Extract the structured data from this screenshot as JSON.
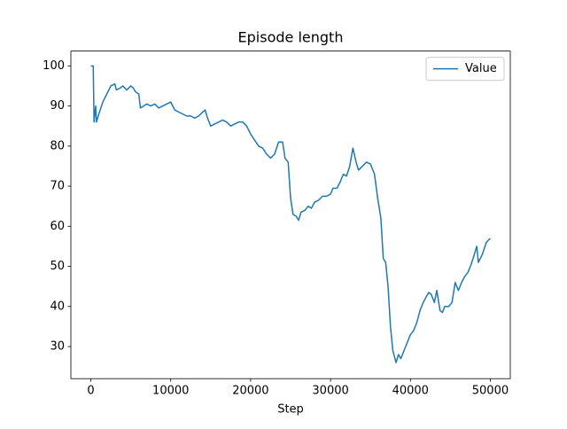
{
  "chart_data": {
    "type": "line",
    "title": "Episode length",
    "x_label": "Step",
    "x": [
      0,
      300,
      400,
      600,
      700,
      1000,
      1500,
      2000,
      2500,
      3000,
      3200,
      3700,
      4000,
      4500,
      5000,
      5300,
      5600,
      6000,
      6200,
      6600,
      7000,
      7500,
      8000,
      8500,
      9000,
      9500,
      10000,
      10500,
      11000,
      11500,
      12000,
      12500,
      13000,
      13500,
      14000,
      14300,
      14600,
      15000,
      15500,
      16000,
      16500,
      17000,
      17500,
      18000,
      18500,
      19000,
      19500,
      20000,
      20500,
      21000,
      21500,
      22000,
      22500,
      23000,
      23500,
      24000,
      24300,
      24700,
      25000,
      25300,
      25700,
      26000,
      26300,
      26800,
      27200,
      27600,
      28000,
      28500,
      29000,
      29500,
      30000,
      30300,
      30800,
      31200,
      31600,
      32000,
      32400,
      32800,
      33200,
      33500,
      34000,
      34500,
      35000,
      35500,
      35900,
      36300,
      36600,
      36900,
      37200,
      37500,
      37800,
      38200,
      38500,
      38800,
      39200,
      39600,
      40000,
      40400,
      40800,
      41200,
      41600,
      42000,
      42300,
      42600,
      43000,
      43300,
      43700,
      44000,
      44300,
      44800,
      45200,
      45600,
      46000,
      46400,
      46800,
      47200,
      47600,
      48000,
      48300,
      48500,
      49000,
      49500,
      50000
    ],
    "series": [
      {
        "name": "Value",
        "color": "#1f77b4",
        "values": [
          100,
          100,
          86,
          90,
          86,
          88,
          91,
          93,
          95,
          95.5,
          94,
          94.5,
          95,
          94,
          95,
          94.5,
          93.5,
          93,
          89.5,
          90,
          90.5,
          90,
          90.5,
          89.5,
          90,
          90.5,
          91,
          89,
          88.5,
          88,
          87.5,
          87.5,
          87,
          87.5,
          88.5,
          89,
          87,
          85,
          85.5,
          86,
          86.5,
          86,
          85,
          85.5,
          86,
          86,
          85,
          83,
          81.5,
          80,
          79.5,
          78,
          77,
          78,
          81,
          81,
          77,
          76,
          67,
          63,
          62.5,
          61.5,
          63.5,
          64,
          65,
          64.5,
          66,
          66.5,
          67.5,
          67.5,
          68,
          69.5,
          69.5,
          71,
          73,
          72.5,
          75,
          79.5,
          76,
          74,
          75,
          76,
          75.5,
          73,
          67,
          62,
          52,
          51,
          45,
          35,
          29,
          26,
          28,
          27,
          29,
          31,
          33,
          34,
          36,
          39,
          41,
          42.5,
          43.5,
          43,
          41,
          44,
          39,
          38.5,
          40,
          40,
          41,
          46,
          44,
          46,
          47.5,
          48.5,
          50.5,
          53,
          55,
          51,
          53,
          56,
          57
        ]
      }
    ],
    "xlim": [
      -2500,
      52500
    ],
    "ylim": [
      22,
      103.7
    ],
    "xticks": [
      0,
      10000,
      20000,
      30000,
      40000,
      50000
    ],
    "yticks": [
      30,
      40,
      50,
      60,
      70,
      80,
      90,
      100
    ],
    "legend": "upper right"
  }
}
